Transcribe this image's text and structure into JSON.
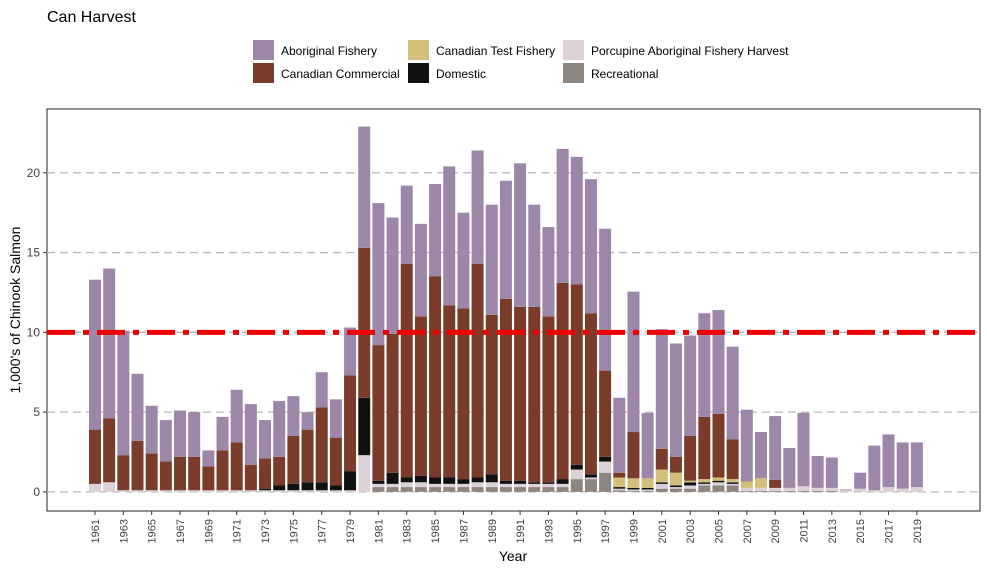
{
  "chart_data": {
    "type": "bar",
    "stacked": true,
    "title": "Can Harvest",
    "xlabel": "Year",
    "ylabel": "1,000's of Chinook Salmon",
    "ylim": [
      -1.2,
      24.0
    ],
    "yticks": [
      0,
      5,
      10,
      15,
      20
    ],
    "grid": "horizontal dashed",
    "reference_line": {
      "y": 10,
      "color": "#ee0000",
      "style": "long-dash-dot"
    },
    "legend_position": "top",
    "x": [
      1961,
      1962,
      1963,
      1964,
      1965,
      1966,
      1967,
      1968,
      1969,
      1970,
      1971,
      1972,
      1973,
      1974,
      1975,
      1976,
      1977,
      1978,
      1979,
      1980,
      1981,
      1982,
      1983,
      1984,
      1985,
      1986,
      1987,
      1988,
      1989,
      1990,
      1991,
      1992,
      1993,
      1994,
      1995,
      1996,
      1997,
      1998,
      1999,
      2000,
      2001,
      2002,
      2003,
      2004,
      2005,
      2006,
      2007,
      2008,
      2009,
      2010,
      2011,
      2012,
      2013,
      2014,
      2015,
      2016,
      2017,
      2018,
      2019
    ],
    "xtick_labels": [
      "1961",
      "1963",
      "1965",
      "1967",
      "1969",
      "1971",
      "1973",
      "1975",
      "1977",
      "1979",
      "1981",
      "1983",
      "1985",
      "1987",
      "1989",
      "1991",
      "1993",
      "1995",
      "1997",
      "1999",
      "2001",
      "2003",
      "2005",
      "2007",
      "2009",
      "2011",
      "2013",
      "2015",
      "2017",
      "2019"
    ],
    "series": [
      {
        "name": "Recreational",
        "color": "#8c8580",
        "values": [
          0,
          0,
          0,
          0,
          0,
          0,
          0,
          0,
          0,
          0,
          0,
          0,
          0,
          0,
          0,
          0,
          0,
          0,
          0,
          0,
          0.3,
          0.3,
          0.3,
          0.3,
          0.3,
          0.3,
          0.3,
          0.3,
          0.3,
          0.3,
          0.3,
          0.3,
          0.3,
          0.3,
          0.8,
          0.8,
          1.2,
          0.1,
          0.05,
          0.05,
          0.2,
          0.2,
          0.2,
          0.4,
          0.4,
          0.4,
          0.05,
          0.05,
          0.05,
          0.05,
          0.05,
          0.05,
          0.05,
          0,
          0,
          0,
          0,
          0,
          0
        ]
      },
      {
        "name": "Porcupine Aboriginal Fishery Harvest",
        "color": "#dcd1d6",
        "values": [
          0.5,
          0.6,
          0.1,
          0.1,
          0.1,
          0.1,
          0.1,
          0.1,
          0.1,
          0.1,
          0.1,
          0.1,
          0.1,
          0.1,
          0.1,
          0.1,
          0.1,
          0.1,
          0.1,
          2.3,
          0.2,
          0.2,
          0.3,
          0.3,
          0.2,
          0.2,
          0.2,
          0.3,
          0.3,
          0.2,
          0.2,
          0.2,
          0.2,
          0.2,
          0.6,
          0.1,
          0.7,
          0.1,
          0.1,
          0.1,
          0.3,
          0.1,
          0.2,
          0.1,
          0.2,
          0.1,
          0.2,
          0.2,
          0.2,
          0.2,
          0.3,
          0.2,
          0.2,
          0.1,
          0.2,
          0.1,
          0.3,
          0.2,
          0.3
        ]
      },
      {
        "name": "Domestic",
        "color": "#111111",
        "values": [
          0,
          0,
          0,
          0,
          0,
          0,
          0,
          0,
          0,
          0,
          0,
          0,
          0.1,
          0.3,
          0.4,
          0.5,
          0.5,
          0.3,
          1.2,
          3.6,
          0.2,
          0.7,
          0.3,
          0.4,
          0.4,
          0.4,
          0.3,
          0.3,
          0.5,
          0.2,
          0.2,
          0.1,
          0.1,
          0.3,
          0.3,
          0.2,
          0.3,
          0.1,
          0.1,
          0.1,
          0.1,
          0.1,
          0.2,
          0.1,
          0.1,
          0.1,
          0,
          0,
          0,
          0,
          0,
          0,
          0,
          0,
          0,
          0,
          0,
          0,
          0
        ]
      },
      {
        "name": "Canadian Test Fishery",
        "color": "#d4bf7a",
        "values": [
          0,
          0,
          0,
          0,
          0,
          0,
          0,
          0,
          0,
          0,
          0,
          0,
          0,
          0,
          0,
          0,
          0,
          0,
          0,
          0,
          0,
          0,
          0,
          0,
          0,
          0,
          0,
          0,
          0,
          0,
          0,
          0,
          0,
          0,
          0,
          0,
          0,
          0.6,
          0.6,
          0.6,
          0.8,
          0.8,
          0.1,
          0.2,
          0.2,
          0.2,
          0.4,
          0.6,
          0,
          0,
          0,
          0,
          0,
          0,
          0,
          0,
          0,
          0,
          0
        ]
      },
      {
        "name": "Canadian Commercial",
        "color": "#7a3b2a",
        "values": [
          3.4,
          4.0,
          2.2,
          3.1,
          2.3,
          1.8,
          2.1,
          2.1,
          1.5,
          2.5,
          3.0,
          1.6,
          1.9,
          1.8,
          3.0,
          3.3,
          4.7,
          3.0,
          6.0,
          9.4,
          8.5,
          8.7,
          13.4,
          10.0,
          12.6,
          10.8,
          10.7,
          13.4,
          10.0,
          11.4,
          10.9,
          11.0,
          10.4,
          12.3,
          11.3,
          10.1,
          5.4,
          0.3,
          2.9,
          0,
          1.3,
          1.0,
          2.8,
          3.9,
          4.0,
          2.5,
          0,
          0,
          0.5,
          0,
          0,
          0,
          0,
          0,
          0,
          0,
          0,
          0,
          0
        ]
      },
      {
        "name": "Aboriginal Fishery",
        "color": "#9d87a8",
        "values": [
          9.4,
          9.4,
          7.8,
          4.2,
          3.0,
          2.6,
          2.9,
          2.8,
          1.0,
          2.1,
          3.3,
          3.8,
          2.4,
          3.5,
          2.5,
          1.1,
          2.2,
          2.4,
          3.0,
          7.6,
          8.9,
          7.3,
          4.9,
          5.8,
          5.8,
          8.7,
          6.0,
          7.1,
          6.9,
          7.4,
          9.0,
          6.4,
          5.6,
          8.4,
          8.0,
          8.4,
          8.9,
          4.7,
          8.8,
          4.1,
          7.5,
          7.1,
          6.3,
          6.5,
          6.5,
          5.8,
          4.5,
          2.9,
          4.0,
          2.5,
          4.6,
          2.0,
          1.9,
          0.05,
          1.0,
          2.8,
          3.3,
          2.9,
          2.8
        ]
      }
    ]
  },
  "legend": {
    "items": [
      {
        "label": "Aboriginal Fishery",
        "color": "#9d87a8"
      },
      {
        "label": "Canadian Commercial",
        "color": "#7a3b2a"
      },
      {
        "label": "Canadian Test Fishery",
        "color": "#d4bf7a"
      },
      {
        "label": "Domestic",
        "color": "#111111"
      },
      {
        "label": "Porcupine Aboriginal Fishery Harvest",
        "color": "#dcd1d6"
      },
      {
        "label": "Recreational",
        "color": "#8c8580"
      }
    ]
  }
}
